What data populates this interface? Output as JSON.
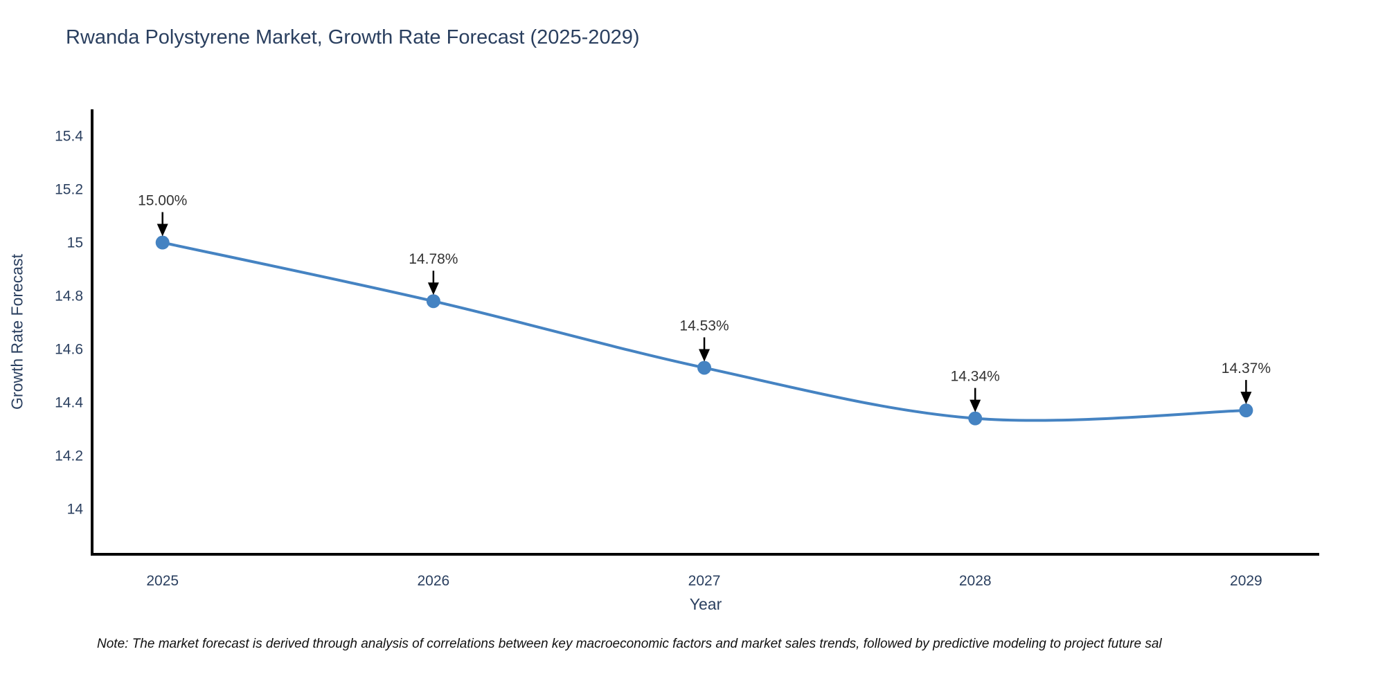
{
  "note": "Note: The market forecast is derived through analysis of correlations between key macroeconomic factors and market sales trends, followed by predictive modeling to project future sal",
  "chart_data": {
    "type": "line",
    "title": "Rwanda Polystyrene Market, Growth Rate Forecast (2025-2029)",
    "xlabel": "Year",
    "ylabel": "Growth Rate Forecast",
    "x": [
      2025,
      2026,
      2027,
      2028,
      2029
    ],
    "x_tick_labels": [
      "2025",
      "2026",
      "2027",
      "2028",
      "2029"
    ],
    "series": [
      {
        "name": "Growth Rate Forecast",
        "values": [
          15.0,
          14.78,
          14.53,
          14.34,
          14.37
        ],
        "point_labels": [
          "15.00%",
          "14.78%",
          "14.53%",
          "14.34%",
          "14.37%"
        ]
      }
    ],
    "y_ticks": [
      14,
      14.2,
      14.4,
      14.6,
      14.8,
      15,
      15.2,
      15.4
    ],
    "y_tick_labels": [
      "14",
      "14.2",
      "14.4",
      "14.6",
      "14.8",
      "15",
      "15.2",
      "15.4"
    ],
    "ylim": [
      13.83,
      15.5
    ],
    "xlim": [
      2024.74,
      2029.27
    ],
    "grid": false,
    "legend_position": "none",
    "line_shape": "spline",
    "colors": {
      "line": "#4583c2",
      "marker": "#4583c2",
      "axis": "#000000",
      "tick_text": "#2a3f5f",
      "annotation_text": "#333333",
      "arrow": "#000000",
      "background": "#ffffff"
    }
  }
}
